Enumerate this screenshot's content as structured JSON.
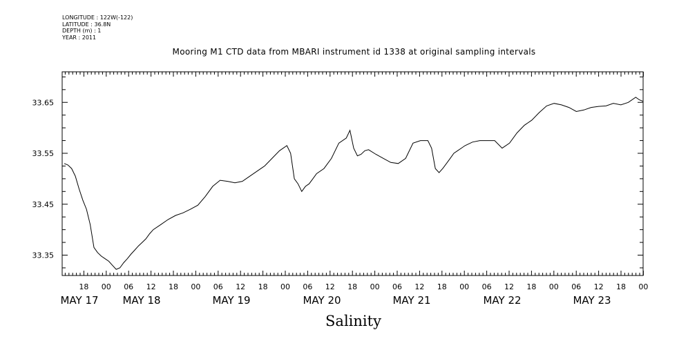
{
  "header": {
    "info_lines": [
      "LONGITUDE : 122W(-122)",
      "LATITUDE : 36.8N",
      "DEPTH (m) : 1",
      "YEAR : 2011"
    ]
  },
  "chart_data": {
    "type": "line",
    "title": "Mooring M1 CTD data from MBARI instrument id 1338 at original sampling intervals",
    "xlabel": "Salinity",
    "ylabel": "",
    "ylim": [
      33.31,
      33.71
    ],
    "yticks": [
      "33.35",
      "33.45",
      "33.55",
      "33.65"
    ],
    "xlim_hours": [
      0,
      156
    ],
    "hour_tick_labels": [
      "18",
      "00",
      "06",
      "12",
      "18",
      "00",
      "06",
      "12",
      "18",
      "00",
      "06",
      "12",
      "18",
      "00",
      "06",
      "12",
      "18",
      "00",
      "06",
      "12",
      "18",
      "00",
      "06",
      "12",
      "18",
      "00"
    ],
    "day_labels": [
      "MAY 17",
      "MAY 18",
      "MAY 19",
      "MAY 20",
      "MAY 21",
      "MAY 22",
      "MAY 23"
    ],
    "grid": false,
    "series": [
      {
        "name": "",
        "color": "#000000",
        "x_hours": [
          0,
          1,
          2,
          3,
          4,
          5,
          6,
          7,
          8,
          9,
          10,
          11,
          12,
          13,
          14,
          15,
          16,
          17,
          18,
          19,
          20,
          21,
          22,
          23,
          24,
          26,
          28,
          30,
          32,
          34,
          36,
          38,
          40,
          42,
          44,
          46,
          48,
          50,
          52,
          54,
          56,
          58,
          60,
          61,
          62,
          63,
          64,
          65,
          66,
          67,
          68,
          70,
          72,
          74,
          76,
          77,
          78,
          79,
          80,
          81,
          82,
          84,
          86,
          88,
          90,
          92,
          94,
          96,
          98,
          99,
          100,
          101,
          102,
          103,
          104,
          105,
          106,
          107,
          108,
          110,
          112,
          114,
          116,
          118,
          120,
          122,
          124,
          126,
          128,
          130,
          132,
          134,
          136,
          138,
          140,
          142,
          144,
          146,
          148,
          150,
          152,
          154,
          155,
          156
        ],
        "values": [
          33.53,
          33.527,
          33.52,
          33.505,
          33.48,
          33.458,
          33.44,
          33.41,
          33.365,
          33.355,
          33.348,
          33.343,
          33.338,
          33.33,
          33.322,
          33.325,
          33.335,
          33.343,
          33.352,
          33.36,
          33.368,
          33.375,
          33.382,
          33.392,
          33.4,
          33.41,
          33.42,
          33.428,
          33.433,
          33.44,
          33.448,
          33.465,
          33.485,
          33.497,
          33.495,
          33.492,
          33.495,
          33.505,
          33.515,
          33.525,
          33.54,
          33.555,
          33.565,
          33.55,
          33.5,
          33.49,
          33.475,
          33.485,
          33.49,
          33.5,
          33.51,
          33.52,
          33.54,
          33.57,
          33.58,
          33.595,
          33.56,
          33.545,
          33.548,
          33.555,
          33.557,
          33.548,
          33.54,
          33.532,
          33.53,
          33.54,
          33.57,
          33.575,
          33.575,
          33.56,
          33.52,
          33.512,
          33.52,
          33.53,
          33.54,
          33.55,
          33.555,
          33.56,
          33.565,
          33.572,
          33.575,
          33.575,
          33.575,
          33.56,
          33.57,
          33.59,
          33.605,
          33.615,
          33.63,
          33.643,
          33.648,
          33.645,
          33.64,
          33.632,
          33.635,
          33.64,
          33.642,
          33.643,
          33.648,
          33.645,
          33.65,
          33.66,
          33.655,
          33.652
        ]
      }
    ]
  }
}
